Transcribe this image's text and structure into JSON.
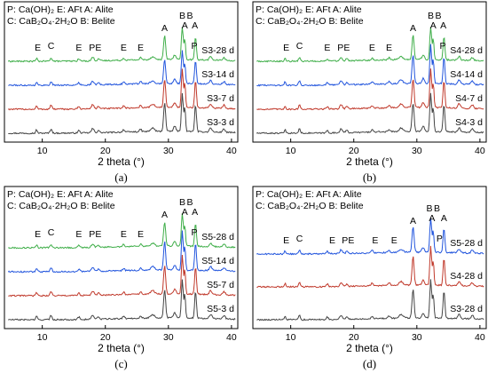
{
  "chart_data": [
    {
      "panel": "(a)",
      "type": "line",
      "xlabel": "2 theta (°)",
      "xlim": [
        4,
        41
      ],
      "xticks": [
        10,
        20,
        30,
        40
      ],
      "legend_lines": [
        "P: Ca(OH)₂  E: AFt  A: Alite",
        "C: CaB₂O₄·2H₂O  B: Belite"
      ],
      "series": [
        {
          "name": "S3-3 d",
          "color": "#444444",
          "peak_scale": 1.0
        },
        {
          "name": "S3-7 d",
          "color": "#c0392b",
          "peak_scale": 1.0
        },
        {
          "name": "S3-14 d",
          "color": "#2255dd",
          "peak_scale": 0.85
        },
        {
          "name": "S3-28 d",
          "color": "#3fae49",
          "peak_scale": 0.85
        }
      ],
      "peak_labels": [
        {
          "text": "E",
          "x": 9.3
        },
        {
          "text": "C",
          "x": 11.4
        },
        {
          "text": "E",
          "x": 15.8
        },
        {
          "text": "P",
          "x": 17.9
        },
        {
          "text": "E",
          "x": 18.9
        },
        {
          "text": "E",
          "x": 22.9
        },
        {
          "text": "E",
          "x": 25.6
        },
        {
          "text": "A",
          "x": 29.4
        },
        {
          "text": "B",
          "x": 32.2
        },
        {
          "text": "B",
          "x": 33.4
        },
        {
          "text": "A",
          "x": 32.6
        },
        {
          "text": "A",
          "x": 34.2
        },
        {
          "text": "P",
          "x": 34.1
        }
      ]
    },
    {
      "panel": "(b)",
      "type": "line",
      "xlabel": "2 theta (°)",
      "xlim": [
        4,
        41
      ],
      "xticks": [
        10,
        20,
        30,
        40
      ],
      "legend_lines": [
        "P: Ca(OH)₂  E: AFt  A: Alite",
        "C: CaB₂O₄·2H₂O  B: Belite"
      ],
      "series": [
        {
          "name": "S4-3 d",
          "color": "#444444",
          "peak_scale": 1.0
        },
        {
          "name": "S4-7 d",
          "color": "#c0392b",
          "peak_scale": 1.0
        },
        {
          "name": "S4-14 d",
          "color": "#2255dd",
          "peak_scale": 1.0
        },
        {
          "name": "S4-28 d",
          "color": "#3fae49",
          "peak_scale": 0.85
        }
      ],
      "peak_labels": [
        {
          "text": "E",
          "x": 9.3
        },
        {
          "text": "C",
          "x": 11.4
        },
        {
          "text": "E",
          "x": 15.8
        },
        {
          "text": "P",
          "x": 17.9
        },
        {
          "text": "E",
          "x": 18.9
        },
        {
          "text": "E",
          "x": 22.9
        },
        {
          "text": "E",
          "x": 25.6
        },
        {
          "text": "A",
          "x": 29.4
        },
        {
          "text": "B",
          "x": 32.2
        },
        {
          "text": "B",
          "x": 33.4
        },
        {
          "text": "A",
          "x": 32.6
        },
        {
          "text": "A",
          "x": 34.2
        },
        {
          "text": "P",
          "x": 34.1
        }
      ]
    },
    {
      "panel": "(c)",
      "type": "line",
      "xlabel": "2 theta (°)",
      "xlim": [
        4,
        41
      ],
      "xticks": [
        10,
        20,
        30,
        40
      ],
      "legend_lines": [
        "P: Ca(OH)₂  E: AFt  A: Alite",
        "C: CaB₂O₄·2H₂O  B: Belite"
      ],
      "series": [
        {
          "name": "S5-3 d",
          "color": "#444444",
          "peak_scale": 1.0
        },
        {
          "name": "S5-7 d",
          "color": "#c0392b",
          "peak_scale": 1.0
        },
        {
          "name": "S5-14 d",
          "color": "#2255dd",
          "peak_scale": 1.0
        },
        {
          "name": "S5-28 d",
          "color": "#3fae49",
          "peak_scale": 0.85
        }
      ],
      "peak_labels": [
        {
          "text": "E",
          "x": 9.3
        },
        {
          "text": "C",
          "x": 11.4
        },
        {
          "text": "E",
          "x": 15.8
        },
        {
          "text": "P",
          "x": 17.9
        },
        {
          "text": "E",
          "x": 18.9
        },
        {
          "text": "E",
          "x": 22.9
        },
        {
          "text": "E",
          "x": 25.6
        },
        {
          "text": "A",
          "x": 29.4
        },
        {
          "text": "B",
          "x": 32.2
        },
        {
          "text": "B",
          "x": 33.4
        },
        {
          "text": "A",
          "x": 32.6
        },
        {
          "text": "A",
          "x": 34.2
        },
        {
          "text": "P",
          "x": 34.1
        }
      ]
    },
    {
      "panel": "(d)",
      "type": "line",
      "xlabel": "2 theta (°)",
      "xlim": [
        4,
        41
      ],
      "xticks": [
        10,
        20,
        30,
        40
      ],
      "legend_lines": [
        "P: Ca(OH)₂  E: AFt  A: Alite",
        "C: CaB₂O₄·2H₂O  B: Belite"
      ],
      "series": [
        {
          "name": "S3-28 d",
          "color": "#444444",
          "peak_scale": 1.0
        },
        {
          "name": "S4-28 d",
          "color": "#c0392b",
          "peak_scale": 1.0
        },
        {
          "name": "S5-28 d",
          "color": "#2255dd",
          "peak_scale": 0.9
        }
      ],
      "peak_labels": [
        {
          "text": "E",
          "x": 9.3
        },
        {
          "text": "C",
          "x": 11.4
        },
        {
          "text": "E",
          "x": 16.6
        },
        {
          "text": "P",
          "x": 18.6
        },
        {
          "text": "E",
          "x": 19.6
        },
        {
          "text": "E",
          "x": 23.4
        },
        {
          "text": "E",
          "x": 26.4
        },
        {
          "text": "A",
          "x": 29.4
        },
        {
          "text": "B",
          "x": 32.0
        },
        {
          "text": "B",
          "x": 33.2
        },
        {
          "text": "A",
          "x": 32.4
        },
        {
          "text": "A",
          "x": 34.3
        },
        {
          "text": "P",
          "x": 33.6
        }
      ]
    }
  ]
}
